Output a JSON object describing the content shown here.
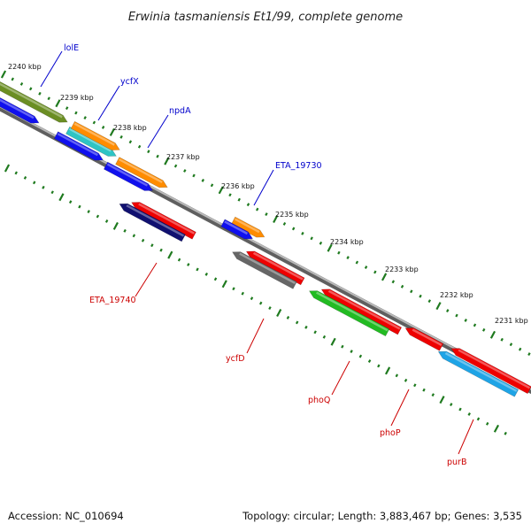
{
  "title": "Erwinia tasmaniensis Et1/99, complete genome",
  "footer": {
    "accession": "Accession: NC_010694",
    "topology": "Topology: circular; Length: 3,883,467 bp; Genes: 3,535"
  },
  "colors": {
    "backbone": "#7d7d7d",
    "tick": "#1f7a1f",
    "label_forward": "#0000cc",
    "label_reverse": "#cc0000"
  },
  "ticks": [
    "2240 kbp",
    "2239 kbp",
    "2238 kbp",
    "2237 kbp",
    "2236 kbp",
    "2235 kbp",
    "2234 kbp",
    "2233 kbp",
    "2232 kbp",
    "2231 kbp"
  ],
  "genes": [
    {
      "name": "lolE",
      "strand": "forward",
      "labeled": true
    },
    {
      "name": "ycfX",
      "strand": "forward",
      "labeled": true
    },
    {
      "name": "npdA",
      "strand": "forward",
      "labeled": true
    },
    {
      "name": "ETA_19730",
      "strand": "forward",
      "labeled": true
    },
    {
      "name": "ETA_19740",
      "strand": "reverse",
      "labeled": true
    },
    {
      "name": "ycfD",
      "strand": "reverse",
      "labeled": true
    },
    {
      "name": "phoQ",
      "strand": "reverse",
      "labeled": true
    },
    {
      "name": "phoP",
      "strand": "reverse",
      "labeled": true
    },
    {
      "name": "purB",
      "strand": "reverse",
      "labeled": true
    }
  ]
}
